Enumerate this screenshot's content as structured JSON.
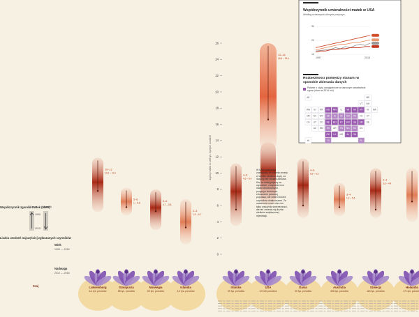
{
  "chart_data": {
    "type": "range-plot",
    "y_axis": {
      "label": "Zgony matek w 100 tys. żywych urodzeń",
      "ticks": [
        0,
        2,
        4,
        6,
        8,
        10,
        12,
        14,
        16,
        18,
        20,
        22,
        24,
        26
      ],
      "ylim": [
        0,
        26
      ]
    },
    "countries": [
      {
        "name": "Luksemburg",
        "births": "6,4 tys. porodów",
        "low": 5.2,
        "high": 11.9,
        "best": 7.8,
        "range_label": "10–12",
        "range_sub": "10,2 – 11,9"
      },
      {
        "name": "Szwajcaria",
        "births": "85 tys. porodów",
        "low": 4.8,
        "high": 8.2,
        "best": 5.8,
        "range_label": "5–6",
        "range_sub": "1 – 5,8"
      },
      {
        "name": "Norwegia",
        "births": "60 tys. porodów",
        "low": 3.0,
        "high": 8.0,
        "best": 5.3,
        "range_label": "5–6",
        "range_sub": "4,7 – 5,8"
      },
      {
        "name": "Islandia",
        "births": "4,3 tys. porodów",
        "low": 1.2,
        "high": 6.8,
        "best": 3.3,
        "range_label": "2–3",
        "range_sub": "1,9 – 6,7"
      },
      {
        "name": "Irlandia",
        "births": "69 tys. porodów",
        "low": 3.5,
        "high": 11.2,
        "best": 5.5,
        "range_label": "4–6",
        "range_sub": "4,6 – 6,4"
      },
      {
        "name": "USA",
        "births": "3,9 mln porodów",
        "low": 12.8,
        "high": 26.0,
        "best": 16.6,
        "range_label": "12–16",
        "range_sub": "16,6 – 26,4"
      },
      {
        "name": "Dania",
        "births": "60 tys. porodów",
        "low": 4.5,
        "high": 11.8,
        "best": 6.0,
        "range_label": "4–6",
        "range_sub": "5,6 – 6,2"
      },
      {
        "name": "Australia",
        "births": "306 tys. porodów",
        "low": 4.7,
        "high": 8.8,
        "best": 5.8,
        "range_label": "3–4",
        "range_sub": "1,2 – 5,6"
      },
      {
        "name": "Szwecja",
        "births": "115 tys. porodów",
        "low": 4.5,
        "high": 10.6,
        "best": 5.5,
        "range_label": "4–4",
        "range_sub": "3,6 – 4,4"
      },
      {
        "name": "Holandia",
        "births": "171 tys. porodów",
        "low": 4.0,
        "high": 10.6,
        "best": 6.5,
        "range_label": "",
        "range_sub": ""
      }
    ],
    "annotation_usa": "W USA uważa się zazwyczaj, że kobiety zmarły w wyniku skutków ciąży, co dotyczy też działek zdrowia. Kto za mniej prędzą na wysokość, a wysokie inne matki strukturalnych przyczyn złożonych zdrowotnie położnej populacji, ale wiele również czynników działa razem. Za uważność może mieć nie tylko wskaźnik śmiertelności, ale też zmienia się liczba skutków zwiększonej rejestracji.",
    "inset_top": {
      "title": "Współczynnik umieralności matek w USA",
      "subtitle": "Według czasowych różnych przyczyn",
      "x_labels": [
        "1997",
        "2015"
      ],
      "y_ticks": [
        "30",
        "20",
        "10"
      ],
      "series": [
        {
          "name": "Ogół",
          "color": "#d04e2a",
          "values": [
            11,
            12,
            13,
            14,
            15,
            16,
            17,
            18,
            19,
            20,
            21,
            22
          ]
        },
        {
          "name": "Matki",
          "color": "#e9976e",
          "values": [
            9,
            10,
            11,
            12,
            13,
            14,
            14,
            15,
            16,
            16,
            17,
            18
          ]
        },
        {
          "name": "Ludność",
          "color": "#999999",
          "values": [
            8,
            8.5,
            9,
            9.5,
            11,
            10,
            12,
            11,
            13,
            14,
            13,
            15
          ]
        },
        {
          "name": "Wiek",
          "color": "#c2331a",
          "values": [
            7,
            8,
            8,
            9,
            9,
            10,
            10,
            11,
            11,
            11,
            12,
            12
          ]
        }
      ]
    },
    "inset_map": {
      "title": "Rozbieżności pomiędzy stanami w sposobie zbierania danych",
      "legend": "Pytanie o ciążę uwzględnione w stanowym świadectwie zgonu (stan na 2014 rok)"
    },
    "side_legend": {
      "title": "Współczynnik zgonów matek (MMR)",
      "items": [
        "Wzrost",
        "Spadek"
      ],
      "years": [
        "1990",
        "2015"
      ],
      "sub_title": "Liczba urodzeń najczęściej zgłaszanych czynników",
      "wiek": "Wiek",
      "years_right": "1990 — 2016",
      "nadwaga": "Nadwaga",
      "nadwaga_years": "2012 — 2016",
      "kraj": "Kraj"
    }
  },
  "colors": {
    "accent": "#c2411e",
    "petal": "#8a5cb8",
    "circle": "#f3d9a2",
    "background": "#f6f1e3"
  }
}
